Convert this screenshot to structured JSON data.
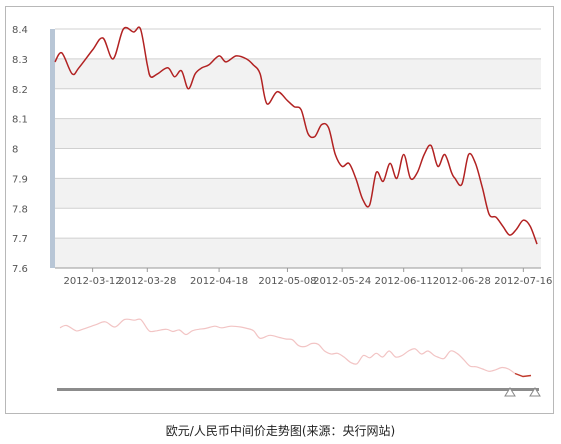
{
  "caption": "欧元/人民币中间价走势图(来源：央行网站)",
  "colors": {
    "line": "#b22222",
    "navigator_line": "#f2c4c4",
    "navigator_selected": "#c0392b",
    "band": "#f2f2f2",
    "grid": "#d0d0d0",
    "axis_accent": "#b8c6d6"
  },
  "chart_data": {
    "type": "line",
    "title": "",
    "xlabel": "",
    "ylabel": "",
    "ylim": [
      7.6,
      8.4
    ],
    "ytick_labels": [
      "8.4",
      "8.3",
      "8.2",
      "8.1",
      "8",
      "7.9",
      "7.8",
      "7.7",
      "7.6"
    ],
    "ytick_values": [
      8.4,
      8.3,
      8.2,
      8.1,
      8.0,
      7.9,
      7.8,
      7.7,
      7.6
    ],
    "xtick_labels": [
      "2012-03-12",
      "2012-03-28",
      "2012-04-18",
      "2012-05-08",
      "2012-05-24",
      "2012-06-11",
      "2012-06-28",
      "2012-07-16"
    ],
    "xtick_dates": [
      "2012-03-12",
      "2012-03-28",
      "2012-04-18",
      "2012-05-08",
      "2012-05-24",
      "2012-06-11",
      "2012-06-28",
      "2012-07-16"
    ],
    "grid": true,
    "alternating_bands": true,
    "series": [
      {
        "x": [
          "2012-03-01",
          "2012-03-03",
          "2012-03-06",
          "2012-03-08",
          "2012-03-12",
          "2012-03-15",
          "2012-03-18",
          "2012-03-21",
          "2012-03-24",
          "2012-03-26",
          "2012-03-28",
          "2012-03-29",
          "2012-03-31",
          "2012-04-03",
          "2012-04-05",
          "2012-04-07",
          "2012-04-09",
          "2012-04-11",
          "2012-04-13",
          "2012-04-15",
          "2012-04-18",
          "2012-04-20",
          "2012-04-23",
          "2012-04-26",
          "2012-04-28",
          "2012-04-30",
          "2012-05-02",
          "2012-05-05",
          "2012-05-08",
          "2012-05-10",
          "2012-05-12",
          "2012-05-14",
          "2012-05-16",
          "2012-05-18",
          "2012-05-20",
          "2012-05-22",
          "2012-05-24",
          "2012-05-26",
          "2012-05-28",
          "2012-05-30",
          "2012-06-01",
          "2012-06-03",
          "2012-06-05",
          "2012-06-07",
          "2012-06-09",
          "2012-06-11",
          "2012-06-13",
          "2012-06-15",
          "2012-06-17",
          "2012-06-19",
          "2012-06-21",
          "2012-06-23",
          "2012-06-25",
          "2012-06-26",
          "2012-06-28",
          "2012-06-30",
          "2012-07-02",
          "2012-07-04",
          "2012-07-06",
          "2012-07-08",
          "2012-07-10",
          "2012-07-12",
          "2012-07-14",
          "2012-07-16",
          "2012-07-18",
          "2012-07-20"
        ],
        "y": [
          8.29,
          8.32,
          8.25,
          8.27,
          8.33,
          8.37,
          8.3,
          8.4,
          8.39,
          8.4,
          8.28,
          8.24,
          8.25,
          8.27,
          8.24,
          8.26,
          8.2,
          8.25,
          8.27,
          8.28,
          8.31,
          8.29,
          8.31,
          8.3,
          8.28,
          8.25,
          8.15,
          8.19,
          8.16,
          8.14,
          8.13,
          8.05,
          8.04,
          8.08,
          8.07,
          7.98,
          7.94,
          7.95,
          7.9,
          7.83,
          7.81,
          7.92,
          7.89,
          7.95,
          7.9,
          7.98,
          7.9,
          7.92,
          7.98,
          8.01,
          7.94,
          7.98,
          7.92,
          7.9,
          7.88,
          7.98,
          7.95,
          7.87,
          7.78,
          7.77,
          7.74,
          7.71,
          7.73,
          7.76,
          7.74,
          7.68
        ]
      }
    ]
  }
}
